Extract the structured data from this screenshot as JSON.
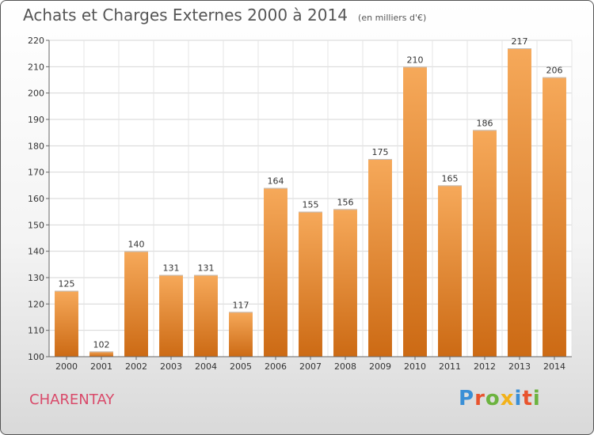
{
  "chart_data": {
    "type": "bar",
    "title": "Achats et Charges Externes 2000 à 2014",
    "subtitle": "(en milliers d'€)",
    "categories": [
      "2000",
      "2001",
      "2002",
      "2003",
      "2004",
      "2005",
      "2006",
      "2007",
      "2008",
      "2009",
      "2010",
      "2011",
      "2012",
      "2013",
      "2014"
    ],
    "values": [
      125,
      102,
      140,
      131,
      131,
      117,
      164,
      155,
      156,
      175,
      210,
      165,
      186,
      217,
      206
    ],
    "ylim": [
      100,
      220
    ],
    "yticks": [
      100,
      110,
      120,
      130,
      140,
      150,
      160,
      170,
      180,
      190,
      200,
      210,
      220
    ],
    "xlabel": "",
    "ylabel": "",
    "grid": true,
    "bar_color_top": "#f6a95a",
    "bar_color_bottom": "#cc6a14"
  },
  "footer": {
    "commune": "CHARENTAY",
    "commune_color": "#d94a6a",
    "brand": "Proxiti",
    "brand_letter_colors": [
      "#3a8fd6",
      "#e8542e",
      "#6cb33f",
      "#f2b21b",
      "#3a8fd6",
      "#e8542e",
      "#6cb33f"
    ]
  }
}
